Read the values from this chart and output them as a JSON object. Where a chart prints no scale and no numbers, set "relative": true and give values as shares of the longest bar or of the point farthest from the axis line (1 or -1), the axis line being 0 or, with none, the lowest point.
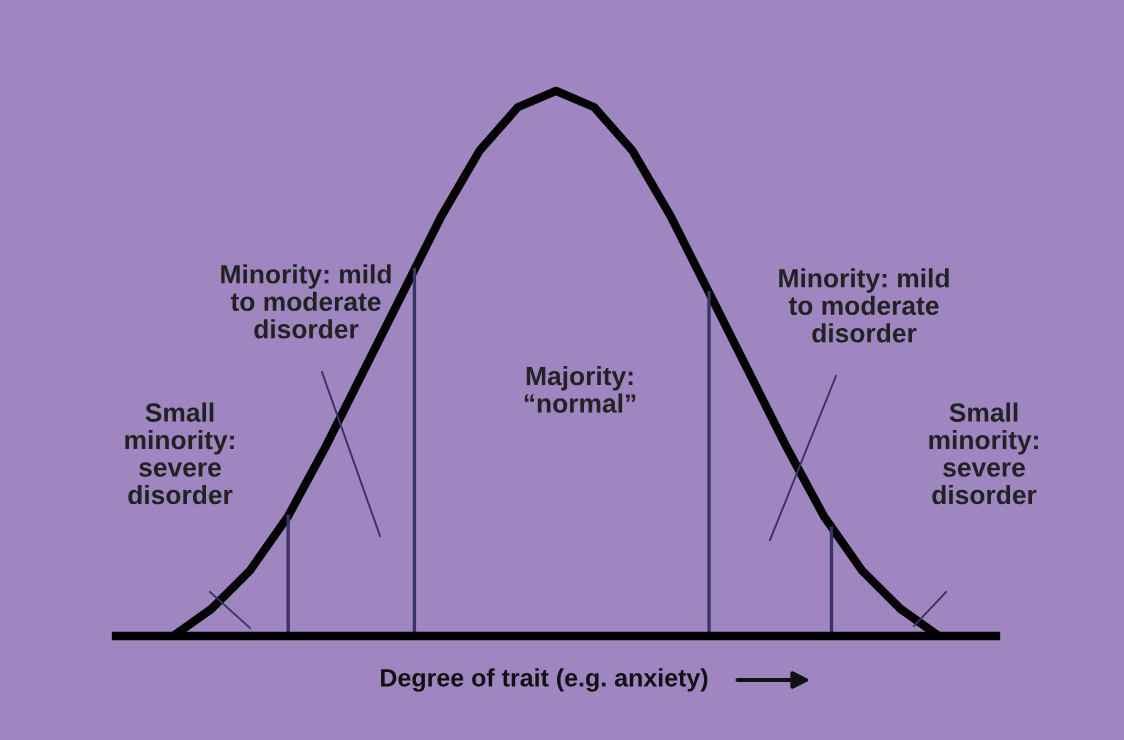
{
  "chart_data": {
    "type": "line",
    "relative": true,
    "xlabel": "Degree of trait (e.g. anxiety)",
    "categories": [
      null,
      null,
      null,
      null,
      null,
      null,
      null,
      null,
      null,
      null,
      null,
      null,
      null,
      null,
      null,
      null,
      null,
      null,
      null,
      null,
      null
    ],
    "series": [
      {
        "color": "#000000",
        "values": [
          0.0,
          0.05,
          0.12,
          0.22,
          0.35,
          0.49,
          0.63,
          0.77,
          0.89,
          0.97,
          1.0,
          0.97,
          0.89,
          0.77,
          0.63,
          0.49,
          0.35,
          0.22,
          0.12,
          0.05,
          0.0
        ]
      }
    ],
    "annotations": [
      "Small\nminority:\nsevere\ndisorder",
      "Minority: mild\nto moderate\ndisorder",
      "Majority:\n“normal”",
      "Minority: mild\nto moderate\ndisorder",
      "Small\nminority:\nsevere\ndisorder"
    ],
    "grid": false,
    "legend": false,
    "marker": "none",
    "line_style": "solid"
  }
}
